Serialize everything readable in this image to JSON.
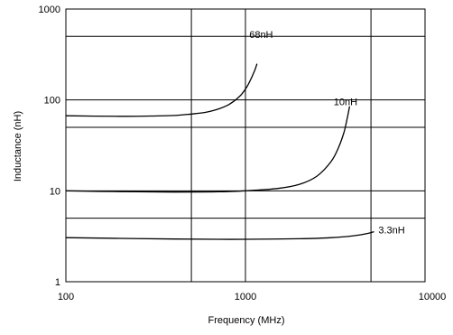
{
  "chart_data": {
    "type": "line",
    "xlabel": "Frequency (MHz)",
    "ylabel": "Inductance (nH)",
    "x_scale": "log",
    "y_scale": "log",
    "xlim": [
      100,
      10000
    ],
    "ylim": [
      1,
      1000
    ],
    "x_ticks": [
      100,
      1000,
      10000
    ],
    "x_tick_labels": [
      "100",
      "1000",
      "10000"
    ],
    "y_ticks": [
      1,
      10,
      100,
      1000
    ],
    "y_tick_labels": [
      "1",
      "10",
      "100",
      "1000"
    ],
    "x_gridlines": [
      100,
      500,
      1000,
      5000,
      10000
    ],
    "y_gridlines": [
      1,
      5,
      10,
      50,
      100,
      500,
      1000
    ],
    "grid": true,
    "series": [
      {
        "name": "68nH",
        "label_at": [
          1050,
          480
        ],
        "points": [
          [
            100,
            67
          ],
          [
            200,
            66
          ],
          [
            300,
            66.5
          ],
          [
            400,
            67.5
          ],
          [
            500,
            70
          ],
          [
            600,
            73
          ],
          [
            700,
            79
          ],
          [
            800,
            88
          ],
          [
            880,
            100
          ],
          [
            950,
            115
          ],
          [
            1020,
            140
          ],
          [
            1080,
            175
          ],
          [
            1130,
            215
          ],
          [
            1160,
            250
          ]
        ]
      },
      {
        "name": "10nH",
        "label_at": [
          3100,
          88
        ],
        "points": [
          [
            100,
            10
          ],
          [
            200,
            9.8
          ],
          [
            400,
            9.7
          ],
          [
            700,
            9.75
          ],
          [
            1000,
            10
          ],
          [
            1500,
            10.6
          ],
          [
            2000,
            11.8
          ],
          [
            2500,
            14.5
          ],
          [
            3000,
            21
          ],
          [
            3300,
            30
          ],
          [
            3550,
            45
          ],
          [
            3700,
            65
          ],
          [
            3800,
            85
          ]
        ]
      },
      {
        "name": "3.3nH",
        "label_at": [
          5500,
          3.4
        ],
        "points": [
          [
            100,
            3.05
          ],
          [
            200,
            3.0
          ],
          [
            400,
            2.95
          ],
          [
            700,
            2.93
          ],
          [
            1000,
            2.93
          ],
          [
            2000,
            2.97
          ],
          [
            3000,
            3.05
          ],
          [
            4000,
            3.2
          ],
          [
            4800,
            3.4
          ],
          [
            5200,
            3.55
          ]
        ]
      }
    ]
  }
}
